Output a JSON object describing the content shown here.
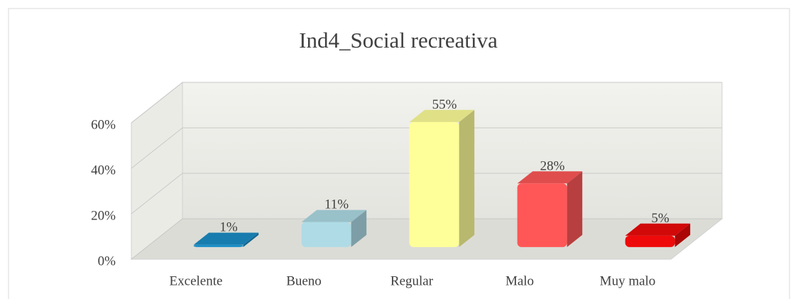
{
  "chart_data": {
    "type": "bar3d",
    "title": "Ind4_Social recreativa",
    "categories": [
      "Excelente",
      "Bueno",
      "Regular",
      "Malo",
      "Muy malo"
    ],
    "values": [
      1,
      11,
      55,
      28,
      5
    ],
    "value_labels": [
      "1%",
      "11%",
      "55%",
      "28%",
      "5%"
    ],
    "colors": [
      "#1b8ec6",
      "#aedbe6",
      "#ffff99",
      "#ff5757",
      "#ee0a0a"
    ],
    "ylim": [
      0,
      60
    ],
    "yticks": [
      {
        "value": 0,
        "label": "0%"
      },
      {
        "value": 20,
        "label": "20%"
      },
      {
        "value": 40,
        "label": "40%"
      },
      {
        "value": 60,
        "label": "60%"
      }
    ],
    "grid": true
  }
}
